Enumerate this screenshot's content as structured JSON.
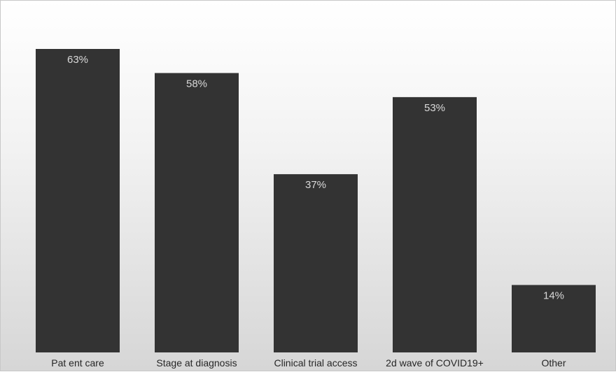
{
  "chart_data": {
    "type": "bar",
    "title": "",
    "xlabel": "",
    "ylabel": "",
    "categories": [
      "Pat ent care",
      "Stage at diagnosis",
      "Clinical trial access",
      "2d wave of COVID19+",
      "Other"
    ],
    "values": [
      63,
      58,
      37,
      53,
      14
    ],
    "value_labels": [
      "63%",
      "58%",
      "37%",
      "53%",
      "14%"
    ],
    "ylim": [
      0,
      63
    ],
    "grid": false,
    "legend": "none",
    "colors": {
      "bar": "#333333",
      "bar_label": "#d9d9d9",
      "category_label": "#262626",
      "background_top": "#ffffff",
      "background_bottom": "#d6d6d6"
    }
  }
}
